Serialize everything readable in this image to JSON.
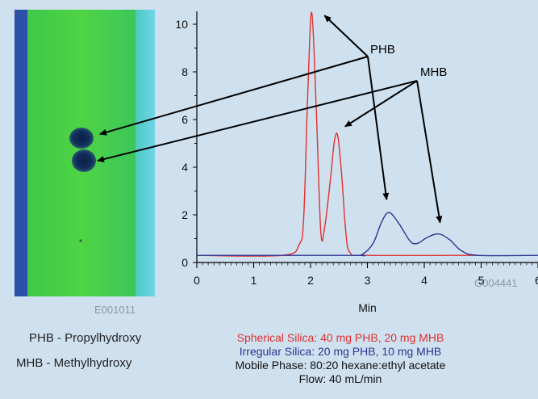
{
  "colors": {
    "background": "#cfe1ef",
    "plate_frame": "#2c4fa8",
    "plate_green": "#45cf45",
    "plate_edge": "#6fd6e8",
    "spot": "#12305e",
    "red_trace": "#e03030",
    "blue_trace": "#2a3590",
    "arrow": "#000000"
  },
  "image_codes": {
    "tlc_plate": "E001011",
    "chart": "G004441"
  },
  "legend_abbreviations": {
    "phb": "PHB - Propylhydroxy",
    "mhb": "MHB - Methylhydroxy"
  },
  "conditions": {
    "spherical": "Spherical Silica: 40 mg PHB, 20 mg MHB",
    "irregular": "Irregular Silica: 20 mg PHB, 10 mg MHB",
    "mobile_phase": "Mobile Phase: 80:20 hexane:ethyl acetate",
    "flow": "Flow: 40 mL/min"
  },
  "chart_data": {
    "type": "line",
    "xlabel": "Min",
    "ylabel": "",
    "xlim": [
      0,
      6
    ],
    "ylim": [
      0,
      10
    ],
    "x_ticks": [
      "0",
      "1",
      "2",
      "3",
      "4",
      "5",
      "6"
    ],
    "y_ticks": [
      "0",
      "2",
      "4",
      "6",
      "8",
      "10"
    ],
    "grid": false,
    "series": [
      {
        "color": "#e03030",
        "baseline": 0.3,
        "x_range": [
          0,
          5.0
        ],
        "peaks": [
          {
            "x": 2.02,
            "height": 10.5,
            "width": 0.07
          },
          {
            "x": 2.48,
            "height": 5.3,
            "width": 0.07
          }
        ],
        "x": [
          0,
          1.5,
          1.8,
          1.88,
          1.95,
          2.02,
          2.1,
          2.18,
          2.25,
          2.35,
          2.42,
          2.48,
          2.55,
          2.62,
          2.7,
          3.0,
          5.0
        ],
        "y": [
          0.3,
          0.3,
          0.75,
          1.9,
          7.0,
          10.5,
          6.5,
          1.3,
          1.5,
          3.5,
          5.1,
          5.3,
          3.6,
          1.3,
          0.4,
          0.3,
          0.3
        ]
      },
      {
        "color": "#2a3590",
        "baseline": 0.3,
        "x_range": [
          0,
          6
        ],
        "peaks": [
          {
            "x": 3.38,
            "height": 2.1,
            "width": 0.18
          },
          {
            "x": 4.25,
            "height": 1.2,
            "width": 0.2
          }
        ],
        "x": [
          0,
          2.7,
          2.9,
          3.1,
          3.25,
          3.38,
          3.55,
          3.75,
          3.88,
          4.05,
          4.25,
          4.45,
          4.65,
          4.95,
          6.0
        ],
        "y": [
          0.3,
          0.3,
          0.33,
          0.8,
          1.7,
          2.1,
          1.65,
          0.9,
          0.8,
          1.05,
          1.2,
          0.95,
          0.5,
          0.3,
          0.3
        ]
      }
    ],
    "annotations": [
      {
        "text": "PHB",
        "targets": [
          "tlc-spot-upper",
          "red-peak-1",
          "blue-peak-1"
        ]
      },
      {
        "text": "MHB",
        "targets": [
          "tlc-spot-lower",
          "red-peak-2",
          "blue-peak-2"
        ]
      }
    ]
  }
}
